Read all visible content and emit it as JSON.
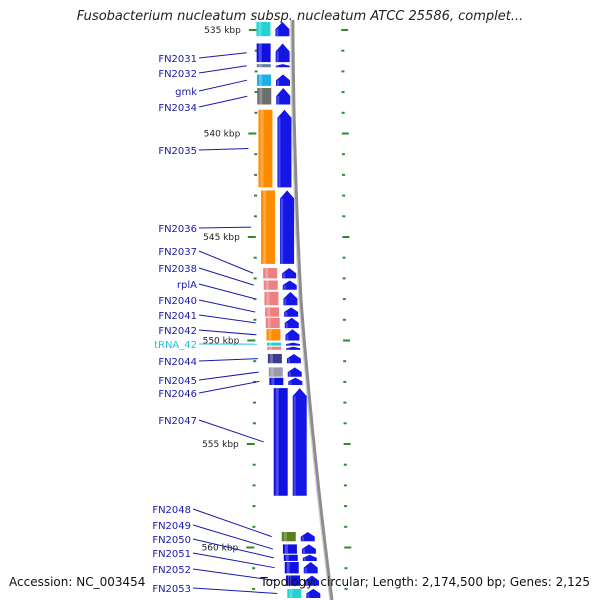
{
  "title": "Fusobacterium nucleatum subsp. nucleatum ATCC 25586, complet...",
  "footer": {
    "accession": "Accession: NC_003454",
    "summary": "Topology: circular; Length: 2,174,500 bp; Genes: 2,125"
  },
  "ruler": [
    {
      "label": "535 kbp",
      "kbp": 535
    },
    {
      "label": "540 kbp",
      "kbp": 540
    },
    {
      "label": "545 kbp",
      "kbp": 545
    },
    {
      "label": "550 kbp",
      "kbp": 550
    },
    {
      "label": "555 kbp",
      "kbp": 555
    },
    {
      "label": "560 kbp",
      "kbp": 560
    }
  ],
  "genes": [
    {
      "label": "",
      "start": 534.3,
      "end": 535.3,
      "color": "#22d3d3"
    },
    {
      "label": "FN2031",
      "start": 535.65,
      "end": 536.55,
      "color": "#1010e0"
    },
    {
      "label": "FN2032",
      "start": 536.65,
      "end": 536.8,
      "color": "#6b7da6"
    },
    {
      "label": "gmk",
      "start": 537.15,
      "end": 537.7,
      "color": "#1db0e8"
    },
    {
      "label": "FN2034",
      "start": 537.8,
      "end": 538.6,
      "color": "#6e6e6e"
    },
    {
      "label": "FN2035",
      "start": 538.85,
      "end": 542.6,
      "color": "#ff8c00"
    },
    {
      "label": "FN2036",
      "start": 542.75,
      "end": 546.3,
      "color": "#ff8c00"
    },
    {
      "label": "FN2037",
      "start": 546.5,
      "end": 547.0,
      "color": "#f08080"
    },
    {
      "label": "FN2038",
      "start": 547.1,
      "end": 547.55,
      "color": "#f08080"
    },
    {
      "label": "rplA",
      "start": 547.65,
      "end": 548.3,
      "color": "#f08080"
    },
    {
      "label": "FN2040",
      "start": 548.4,
      "end": 548.85,
      "color": "#f08080"
    },
    {
      "label": "FN2041",
      "start": 548.9,
      "end": 549.4,
      "color": "#f08080"
    },
    {
      "label": "FN2042",
      "start": 549.45,
      "end": 550.0,
      "color": "#ff8c00"
    },
    {
      "label": "tRNA_42",
      "start": 550.1,
      "end": 550.25,
      "color": "#22d3d3"
    },
    {
      "label": "",
      "start": 550.3,
      "end": 550.45,
      "color": "#f08080"
    },
    {
      "label": "FN2044",
      "start": 550.65,
      "end": 551.1,
      "color": "#3c3c8c"
    },
    {
      "label": "FN2045",
      "start": 551.3,
      "end": 551.75,
      "color": "#9a9aaa"
    },
    {
      "label": "FN2046",
      "start": 551.8,
      "end": 552.15,
      "color": "#1010e0"
    },
    {
      "label": "FN2047",
      "start": 552.3,
      "end": 557.5,
      "color": "#1010e0"
    },
    {
      "label": "FN2048",
      "start": 559.25,
      "end": 559.7,
      "color": "#5a7f1e"
    },
    {
      "label": "FN2049",
      "start": 559.85,
      "end": 560.3,
      "color": "#1010e0"
    },
    {
      "label": "FN2050",
      "start": 560.35,
      "end": 560.65,
      "color": "#1010e0"
    },
    {
      "label": "FN2051",
      "start": 560.7,
      "end": 561.25,
      "color": "#1010e0"
    },
    {
      "label": "FN2052",
      "start": 561.35,
      "end": 561.85,
      "color": "#1010e0"
    },
    {
      "label": "FN2053",
      "start": 562.0,
      "end": 562.9,
      "color": "#22d3d3"
    }
  ]
}
